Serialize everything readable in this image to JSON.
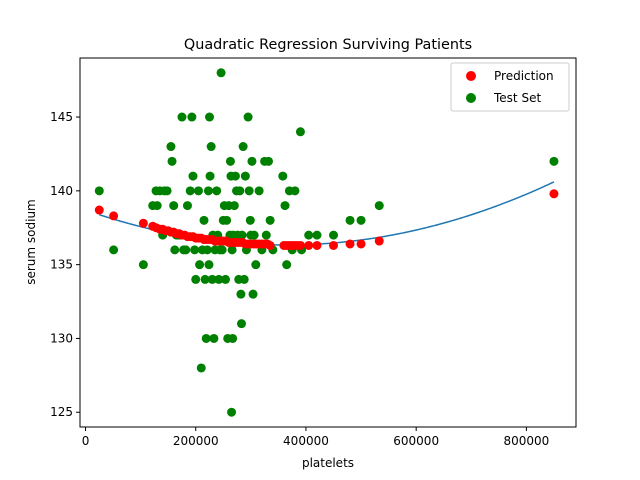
{
  "chart_data": {
    "type": "scatter",
    "title": "Quadratic Regression Surviving Patients",
    "xlabel": "platelets",
    "ylabel": "serum sodium",
    "xlim": [
      -10000,
      890000
    ],
    "ylim": [
      124,
      149
    ],
    "x_ticks": [
      0,
      200000,
      400000,
      600000,
      800000
    ],
    "y_ticks": [
      125,
      130,
      135,
      140,
      145
    ],
    "x_tick_labels": [
      "0",
      "200000",
      "400000",
      "600000",
      "800000"
    ],
    "y_tick_labels": [
      "125",
      "130",
      "135",
      "140",
      "145"
    ],
    "grid": false,
    "legend_placement": "top-right",
    "colors": {
      "prediction": "#ff0000",
      "test_set": "#008000",
      "curve": "#1f77b4"
    },
    "curve": {
      "description_coeffs": [
        138.7,
        -1.306e-05,
        1.8e-11
      ],
      "x_range": [
        25000,
        850000
      ]
    },
    "series": [
      {
        "name": "Prediction",
        "points": [
          [
            25000,
            138.7
          ],
          [
            51000,
            138.3
          ],
          [
            105000,
            137.8
          ],
          [
            122000,
            137.6
          ],
          [
            128000,
            137.5
          ],
          [
            135000,
            137.4
          ],
          [
            140000,
            137.4
          ],
          [
            145000,
            137.3
          ],
          [
            150000,
            137.3
          ],
          [
            155000,
            137.2
          ],
          [
            160000,
            137.2
          ],
          [
            165000,
            137.1
          ],
          [
            170000,
            137.1
          ],
          [
            175000,
            137.0
          ],
          [
            180000,
            137.0
          ],
          [
            185000,
            136.9
          ],
          [
            190000,
            136.9
          ],
          [
            195000,
            136.9
          ],
          [
            200000,
            136.8
          ],
          [
            205000,
            136.8
          ],
          [
            210000,
            136.8
          ],
          [
            215000,
            136.7
          ],
          [
            220000,
            136.7
          ],
          [
            225000,
            136.7
          ],
          [
            230000,
            136.7
          ],
          [
            235000,
            136.6
          ],
          [
            240000,
            136.6
          ],
          [
            245000,
            136.6
          ],
          [
            250000,
            136.6
          ],
          [
            255000,
            136.6
          ],
          [
            260000,
            136.5
          ],
          [
            265000,
            136.5
          ],
          [
            270000,
            136.5
          ],
          [
            275000,
            136.5
          ],
          [
            280000,
            136.5
          ],
          [
            285000,
            136.5
          ],
          [
            290000,
            136.4
          ],
          [
            295000,
            136.4
          ],
          [
            300000,
            136.4
          ],
          [
            305000,
            136.4
          ],
          [
            310000,
            136.4
          ],
          [
            315000,
            136.4
          ],
          [
            320000,
            136.4
          ],
          [
            325000,
            136.4
          ],
          [
            330000,
            136.4
          ],
          [
            335000,
            136.3
          ],
          [
            360000,
            136.3
          ],
          [
            365000,
            136.3
          ],
          [
            370000,
            136.3
          ],
          [
            375000,
            136.3
          ],
          [
            380000,
            136.3
          ],
          [
            385000,
            136.3
          ],
          [
            390000,
            136.3
          ],
          [
            405000,
            136.3
          ],
          [
            420000,
            136.3
          ],
          [
            450000,
            136.3
          ],
          [
            480000,
            136.4
          ],
          [
            500000,
            136.4
          ],
          [
            533000,
            136.6
          ],
          [
            850000,
            139.8
          ]
        ]
      },
      {
        "name": "Test Set",
        "points": [
          [
            25000,
            140
          ],
          [
            51000,
            136
          ],
          [
            105000,
            135
          ],
          [
            122000,
            139
          ],
          [
            128000,
            140
          ],
          [
            130000,
            139
          ],
          [
            135000,
            140
          ],
          [
            140000,
            137
          ],
          [
            143000,
            140
          ],
          [
            148000,
            140
          ],
          [
            155000,
            143
          ],
          [
            157000,
            142
          ],
          [
            160000,
            139
          ],
          [
            162000,
            136
          ],
          [
            165000,
            137
          ],
          [
            170000,
            137
          ],
          [
            175000,
            145
          ],
          [
            178000,
            136
          ],
          [
            182000,
            136
          ],
          [
            185000,
            139
          ],
          [
            190000,
            140
          ],
          [
            193000,
            145
          ],
          [
            195000,
            141
          ],
          [
            198000,
            136
          ],
          [
            200000,
            134
          ],
          [
            205000,
            140
          ],
          [
            207000,
            135
          ],
          [
            210000,
            128
          ],
          [
            212000,
            136
          ],
          [
            215000,
            138
          ],
          [
            217000,
            134
          ],
          [
            219000,
            130
          ],
          [
            221000,
            136
          ],
          [
            223000,
            140
          ],
          [
            224000,
            135
          ],
          [
            225000,
            145
          ],
          [
            226000,
            141
          ],
          [
            228000,
            143
          ],
          [
            230000,
            134
          ],
          [
            231000,
            137
          ],
          [
            233000,
            130
          ],
          [
            235000,
            136
          ],
          [
            238000,
            140
          ],
          [
            240000,
            137
          ],
          [
            242000,
            134
          ],
          [
            244000,
            136
          ],
          [
            246000,
            148
          ],
          [
            248000,
            136
          ],
          [
            250000,
            138
          ],
          [
            252000,
            139
          ],
          [
            254000,
            134
          ],
          [
            256000,
            138
          ],
          [
            258000,
            130
          ],
          [
            260000,
            139
          ],
          [
            262000,
            137
          ],
          [
            263000,
            142
          ],
          [
            264000,
            141
          ],
          [
            265000,
            125
          ],
          [
            266000,
            136
          ],
          [
            267000,
            130
          ],
          [
            268000,
            137
          ],
          [
            270000,
            139
          ],
          [
            272000,
            141
          ],
          [
            274000,
            140
          ],
          [
            276000,
            137
          ],
          [
            278000,
            134
          ],
          [
            280000,
            140
          ],
          [
            282000,
            133
          ],
          [
            283000,
            131
          ],
          [
            284000,
            137
          ],
          [
            286000,
            143
          ],
          [
            288000,
            134
          ],
          [
            290000,
            141
          ],
          [
            292000,
            136
          ],
          [
            295000,
            145
          ],
          [
            297000,
            140
          ],
          [
            299000,
            138
          ],
          [
            300000,
            137
          ],
          [
            302000,
            142
          ],
          [
            304000,
            133
          ],
          [
            306000,
            137
          ],
          [
            309000,
            135
          ],
          [
            315000,
            140
          ],
          [
            320000,
            136
          ],
          [
            325000,
            142
          ],
          [
            328000,
            137
          ],
          [
            332000,
            142
          ],
          [
            335000,
            138
          ],
          [
            340000,
            136
          ],
          [
            358000,
            141
          ],
          [
            362000,
            139
          ],
          [
            365000,
            135
          ],
          [
            370000,
            140
          ],
          [
            375000,
            136
          ],
          [
            380000,
            140
          ],
          [
            390000,
            144
          ],
          [
            392000,
            136
          ],
          [
            405000,
            137
          ],
          [
            420000,
            137
          ],
          [
            450000,
            137
          ],
          [
            480000,
            138
          ],
          [
            500000,
            138
          ],
          [
            533000,
            139
          ],
          [
            850000,
            142
          ]
        ]
      }
    ]
  }
}
